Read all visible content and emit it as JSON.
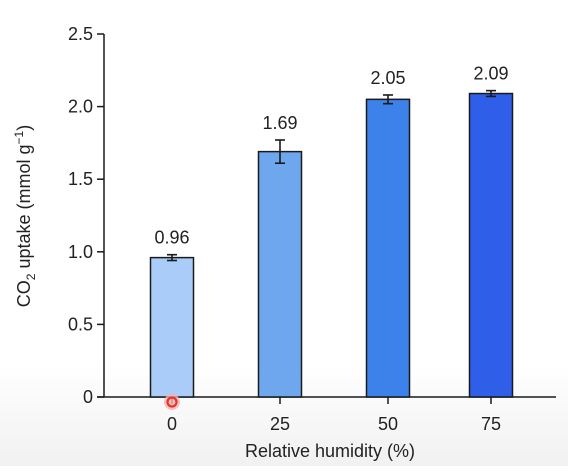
{
  "chart_data": {
    "type": "bar",
    "categories": [
      "0",
      "25",
      "50",
      "75"
    ],
    "values": [
      0.96,
      1.69,
      2.05,
      2.09
    ],
    "errors": [
      0.02,
      0.08,
      0.03,
      0.02
    ],
    "value_labels": [
      "0.96",
      "1.69",
      "2.05",
      "2.09"
    ],
    "bar_colors": [
      "#a9cdf8",
      "#6fa7ef",
      "#3d82ea",
      "#2f5ee8"
    ],
    "edge_color": "#1a1a1a",
    "xlabel": "Relative humidity (%)",
    "ylabel_parts": [
      "CO",
      "2",
      " uptake (mmol g",
      "−1",
      ")"
    ],
    "ylim": [
      0,
      2.5
    ],
    "yticks": [
      0,
      0.5,
      1.0,
      1.5,
      2.0,
      2.5
    ],
    "ytick_labels": [
      "0",
      "0.5",
      "1.0",
      "1.5",
      "2.0",
      "2.5"
    ],
    "grid": false,
    "legend": "none"
  },
  "cursor_marker": {
    "color": "#e8332b"
  }
}
